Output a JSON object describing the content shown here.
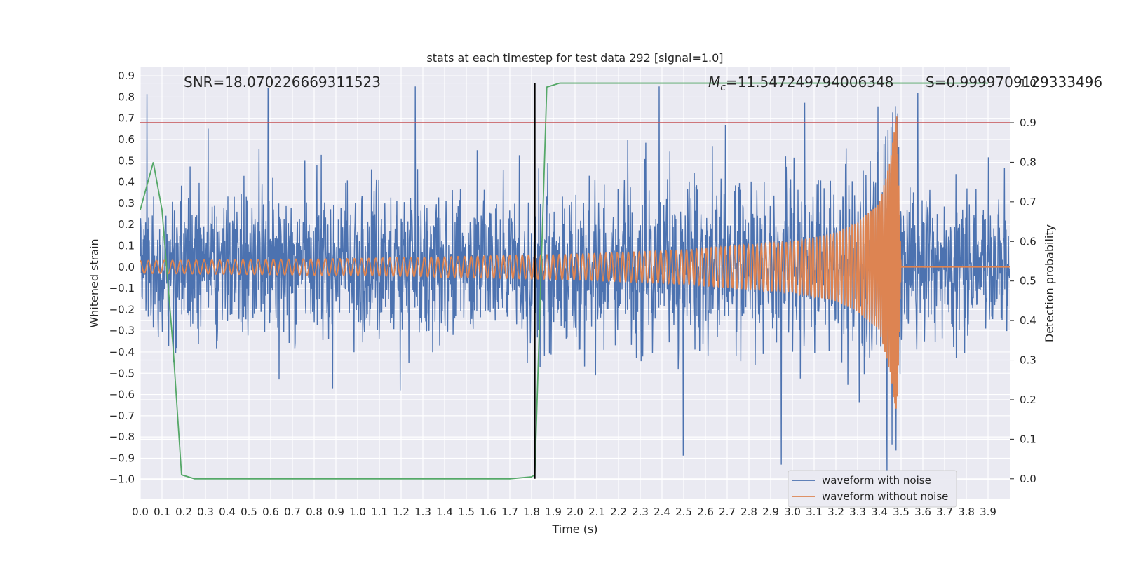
{
  "chart_data": {
    "type": "line",
    "title": "stats at each timestep for test data 292 [signal=1.0]",
    "xlabel": "Time (s)",
    "ylabel": "Whitened strain",
    "y2label": "Detection probability",
    "xlim": [
      0.0,
      4.0
    ],
    "ylim": [
      -1.09,
      0.94
    ],
    "y2lim": [
      -0.05,
      1.04
    ],
    "grid": true,
    "x_ticks": [
      "0.0",
      "0.1",
      "0.2",
      "0.3",
      "0.4",
      "0.5",
      "0.6",
      "0.7",
      "0.8",
      "0.9",
      "1.0",
      "1.1",
      "1.2",
      "1.3",
      "1.4",
      "1.5",
      "1.6",
      "1.7",
      "1.8",
      "1.9",
      "2.0",
      "2.1",
      "2.2",
      "2.3",
      "2.4",
      "2.5",
      "2.6",
      "2.7",
      "2.8",
      "2.9",
      "3.0",
      "3.1",
      "3.2",
      "3.3",
      "3.4",
      "3.5",
      "3.6",
      "3.7",
      "3.8",
      "3.9"
    ],
    "y_ticks": [
      "0.9",
      "0.8",
      "0.7",
      "0.6",
      "0.5",
      "0.4",
      "0.3",
      "0.2",
      "0.1",
      "0.0",
      "−0.1",
      "−0.2",
      "−0.3",
      "−0.4",
      "−0.5",
      "−0.6",
      "−0.7",
      "−0.8",
      "−0.9",
      "−1.0"
    ],
    "y2_ticks": [
      "1.0",
      "0.9",
      "0.8",
      "0.7",
      "0.6",
      "0.5",
      "0.4",
      "0.3",
      "0.2",
      "0.1",
      "0.0"
    ],
    "annotations": {
      "snr": "SNR=18.070226669311523",
      "mc_symbol": "M",
      "mc_sub": "c",
      "mc_value": "=11.547249794006348",
      "s": "S=0.9999709129333496"
    },
    "legend_position": "lower right",
    "series": [
      {
        "name": "waveform with noise",
        "color": "#4c72b0",
        "axis": "left",
        "noise_amplitude": 0.3,
        "peak_max": 0.85,
        "peak_min": -0.96
      },
      {
        "name": "waveform without noise",
        "color": "#dd8452",
        "axis": "left",
        "envelope": {
          "x": [
            0.0,
            1.0,
            2.0,
            2.5,
            3.0,
            3.2,
            3.3,
            3.4,
            3.45,
            3.48,
            3.5
          ],
          "y": [
            0.03,
            0.04,
            0.06,
            0.08,
            0.12,
            0.16,
            0.21,
            0.3,
            0.5,
            0.73,
            0.0
          ]
        },
        "cycles": 150,
        "merger_time": 3.48
      },
      {
        "name": "detection probability",
        "color": "#55a868",
        "axis": "right",
        "x": [
          0.0,
          0.06,
          0.1,
          0.15,
          0.19,
          0.25,
          0.5,
          1.0,
          1.5,
          1.7,
          1.8,
          1.815,
          1.87,
          1.93,
          2.5,
          3.0,
          3.5,
          3.9
        ],
        "y": [
          0.68,
          0.8,
          0.68,
          0.34,
          0.01,
          0.0,
          0.0,
          0.0,
          0.0,
          0.0,
          0.005,
          0.01,
          0.99,
          1.0,
          1.0,
          1.0,
          1.0,
          1.0
        ]
      }
    ],
    "threshold_line": {
      "axis": "right",
      "value": 0.9,
      "color": "#c44e52"
    },
    "vertical_marker": {
      "x": 1.815,
      "color": "#000000"
    }
  }
}
